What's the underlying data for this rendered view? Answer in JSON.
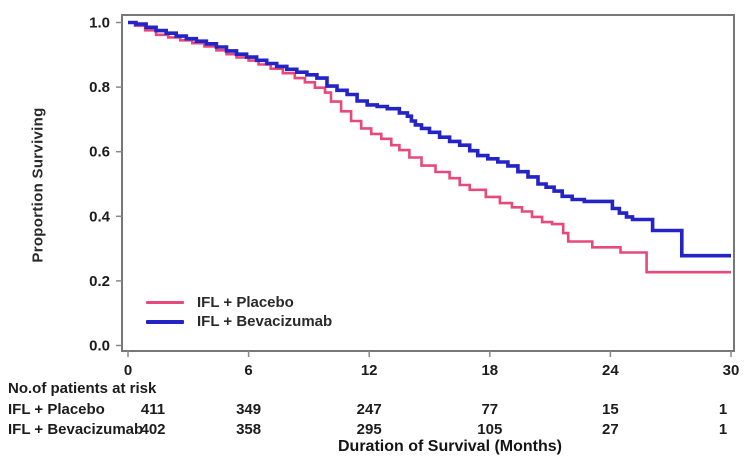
{
  "chart_data": {
    "type": "line",
    "subtype": "kaplan-meier-step",
    "title": "",
    "xlabel": "Duration of Survival (Months)",
    "ylabel": "Proportion Surviving",
    "xlim": [
      0,
      30
    ],
    "ylim": [
      0.0,
      1.0
    ],
    "x_ticks": [
      0,
      6,
      12,
      18,
      24,
      30
    ],
    "y_ticks": [
      1.0,
      0.8,
      0.6,
      0.4,
      0.2,
      0.0
    ],
    "grid": false,
    "legend_position": "inside-bottom-left",
    "series": [
      {
        "name": "IFL + Placebo",
        "color": "#e8497b",
        "line_width": 2.6,
        "points": [
          [
            0,
            1
          ],
          [
            0.35,
            0.99
          ],
          [
            0.85,
            0.976
          ],
          [
            1.4,
            0.962
          ],
          [
            2,
            0.954
          ],
          [
            2.6,
            0.945
          ],
          [
            3.2,
            0.936
          ],
          [
            3.8,
            0.926
          ],
          [
            4.4,
            0.914
          ],
          [
            4.9,
            0.902
          ],
          [
            5.4,
            0.892
          ],
          [
            6,
            0.882
          ],
          [
            6.5,
            0.87
          ],
          [
            7.1,
            0.857
          ],
          [
            7.7,
            0.843
          ],
          [
            8.3,
            0.828
          ],
          [
            8.8,
            0.815
          ],
          [
            9.3,
            0.798
          ],
          [
            9.8,
            0.783
          ],
          [
            10.1,
            0.755
          ],
          [
            10.6,
            0.725
          ],
          [
            11.1,
            0.695
          ],
          [
            11.6,
            0.672
          ],
          [
            12.1,
            0.655
          ],
          [
            12.6,
            0.64
          ],
          [
            13.1,
            0.62
          ],
          [
            13.5,
            0.605
          ],
          [
            14,
            0.582
          ],
          [
            14.6,
            0.557
          ],
          [
            15.3,
            0.537
          ],
          [
            16,
            0.518
          ],
          [
            16.5,
            0.497
          ],
          [
            17,
            0.482
          ],
          [
            17.8,
            0.46
          ],
          [
            18.5,
            0.441
          ],
          [
            19.1,
            0.428
          ],
          [
            19.6,
            0.415
          ],
          [
            20.1,
            0.398
          ],
          [
            20.6,
            0.382
          ],
          [
            21.1,
            0.376
          ],
          [
            21.65,
            0.348
          ],
          [
            21.9,
            0.322
          ],
          [
            23.1,
            0.304
          ],
          [
            24.5,
            0.288
          ],
          [
            25.8,
            0.227
          ],
          [
            30,
            0.227
          ]
        ]
      },
      {
        "name": "IFL + Bevacizumab",
        "color": "#2323c6",
        "line_width": 3.6,
        "points": [
          [
            0,
            1
          ],
          [
            0.4,
            0.995
          ],
          [
            0.9,
            0.985
          ],
          [
            1.4,
            0.975
          ],
          [
            1.9,
            0.967
          ],
          [
            2.4,
            0.958
          ],
          [
            2.9,
            0.95
          ],
          [
            3.4,
            0.942
          ],
          [
            3.9,
            0.934
          ],
          [
            4.4,
            0.924
          ],
          [
            4.9,
            0.912
          ],
          [
            5.4,
            0.902
          ],
          [
            5.9,
            0.893
          ],
          [
            6.4,
            0.883
          ],
          [
            6.9,
            0.873
          ],
          [
            7.4,
            0.864
          ],
          [
            7.9,
            0.855
          ],
          [
            8.4,
            0.846
          ],
          [
            8.9,
            0.838
          ],
          [
            9.4,
            0.828
          ],
          [
            9.9,
            0.803
          ],
          [
            10.4,
            0.79
          ],
          [
            10.9,
            0.777
          ],
          [
            11.4,
            0.757
          ],
          [
            11.9,
            0.745
          ],
          [
            12.4,
            0.74
          ],
          [
            12.9,
            0.733
          ],
          [
            13.5,
            0.72
          ],
          [
            13.9,
            0.71
          ],
          [
            14.1,
            0.695
          ],
          [
            14.3,
            0.683
          ],
          [
            14.6,
            0.672
          ],
          [
            15,
            0.66
          ],
          [
            15.5,
            0.645
          ],
          [
            16,
            0.632
          ],
          [
            16.5,
            0.62
          ],
          [
            17,
            0.603
          ],
          [
            17.4,
            0.588
          ],
          [
            17.9,
            0.578
          ],
          [
            18.4,
            0.568
          ],
          [
            18.9,
            0.556
          ],
          [
            19.4,
            0.538
          ],
          [
            19.9,
            0.522
          ],
          [
            20.4,
            0.5
          ],
          [
            20.8,
            0.49
          ],
          [
            21.2,
            0.478
          ],
          [
            21.6,
            0.462
          ],
          [
            22.1,
            0.452
          ],
          [
            22.7,
            0.446
          ],
          [
            24.1,
            0.424
          ],
          [
            24.45,
            0.41
          ],
          [
            24.8,
            0.398
          ],
          [
            25.1,
            0.39
          ],
          [
            26.1,
            0.356
          ],
          [
            27.55,
            0.278
          ],
          [
            30,
            0.278
          ]
        ]
      }
    ]
  },
  "risk_table": {
    "header": "No.of patients at risk",
    "rows": [
      {
        "label": "IFL + Placebo",
        "counts": [
          "411",
          "349",
          "247",
          "77",
          "15",
          "1"
        ]
      },
      {
        "label": "IFL + Bevacizumab",
        "counts": [
          "402",
          "358",
          "295",
          "105",
          "27",
          "1"
        ]
      }
    ]
  },
  "colors": {
    "axis": "#777777",
    "tick": "#888888",
    "text": "#1c1c1c",
    "background": "#ffffff"
  }
}
